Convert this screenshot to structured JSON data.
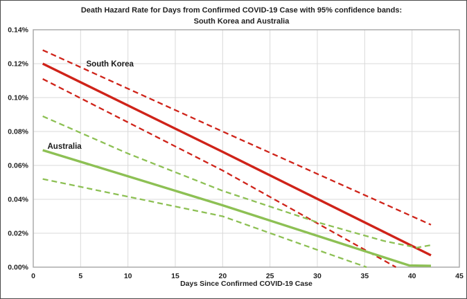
{
  "colors": {
    "south_korea": "#cf2319",
    "australia": "#8dc054",
    "grid": "#d9d9d9",
    "plot_border": "#a6a6a6",
    "text": "#1f1f1f"
  },
  "chart_data": {
    "type": "line",
    "title": "Death Hazard Rate for Days from Confirmed COVID-19 Case with 95% confidence bands: South Korea and Australia",
    "title_lines": [
      "Death Hazard Rate for Days from Confirmed COVID-19 Case with 95% confidence bands:",
      "South Korea and Australia"
    ],
    "xlabel": "Days Since Confirmed COVID-19 Case",
    "ylabel": "",
    "xlim": [
      0,
      45
    ],
    "ylim": [
      0,
      0.14
    ],
    "y_unit": "percent",
    "grid": true,
    "legend": "inline-labels",
    "x_ticks": [
      0,
      5,
      10,
      15,
      20,
      25,
      30,
      35,
      40,
      45
    ],
    "y_ticks": [
      0,
      0.02,
      0.04,
      0.06,
      0.08,
      0.1,
      0.12,
      0.14
    ],
    "y_tick_labels": [
      "0.00%",
      "0.02%",
      "0.04%",
      "0.06%",
      "0.08%",
      "0.10%",
      "0.12%",
      "0.14%"
    ],
    "series": [
      {
        "name": "South Korea",
        "role": "mean",
        "style": "solid",
        "color": "south_korea",
        "x": [
          1,
          20,
          42
        ],
        "y": [
          0.12,
          0.068,
          0.007
        ]
      },
      {
        "name": "South Korea upper 95% CI",
        "role": "ci-upper",
        "style": "dashed",
        "color": "south_korea",
        "x": [
          1,
          20,
          42
        ],
        "y": [
          0.128,
          0.08,
          0.025
        ]
      },
      {
        "name": "South Korea lower 95% CI",
        "role": "ci-lower",
        "style": "dashed",
        "color": "south_korea",
        "x": [
          1,
          20,
          38.3
        ],
        "y": [
          0.111,
          0.057,
          0.0
        ]
      },
      {
        "name": "Australia",
        "role": "mean",
        "style": "solid",
        "color": "australia",
        "x": [
          1,
          20,
          39.7,
          42
        ],
        "y": [
          0.069,
          0.0365,
          0.001,
          0.0008
        ]
      },
      {
        "name": "Australia upper 95% CI",
        "role": "ci-upper",
        "style": "dashed",
        "color": "australia",
        "x": [
          1,
          10,
          20,
          30,
          37,
          40.5,
          42
        ],
        "y": [
          0.089,
          0.067,
          0.045,
          0.0265,
          0.0155,
          0.0115,
          0.013
        ]
      },
      {
        "name": "Australia lower 95% CI",
        "role": "ci-lower",
        "style": "dashed",
        "color": "australia",
        "x": [
          1,
          20,
          31,
          35.2
        ],
        "y": [
          0.052,
          0.03,
          0.0082,
          0.0
        ]
      }
    ],
    "annotations": [
      {
        "label": "South Korea",
        "x": 8.1,
        "y": 0.12
      },
      {
        "label": "Australia",
        "x": 3.3,
        "y": 0.0715
      }
    ]
  }
}
